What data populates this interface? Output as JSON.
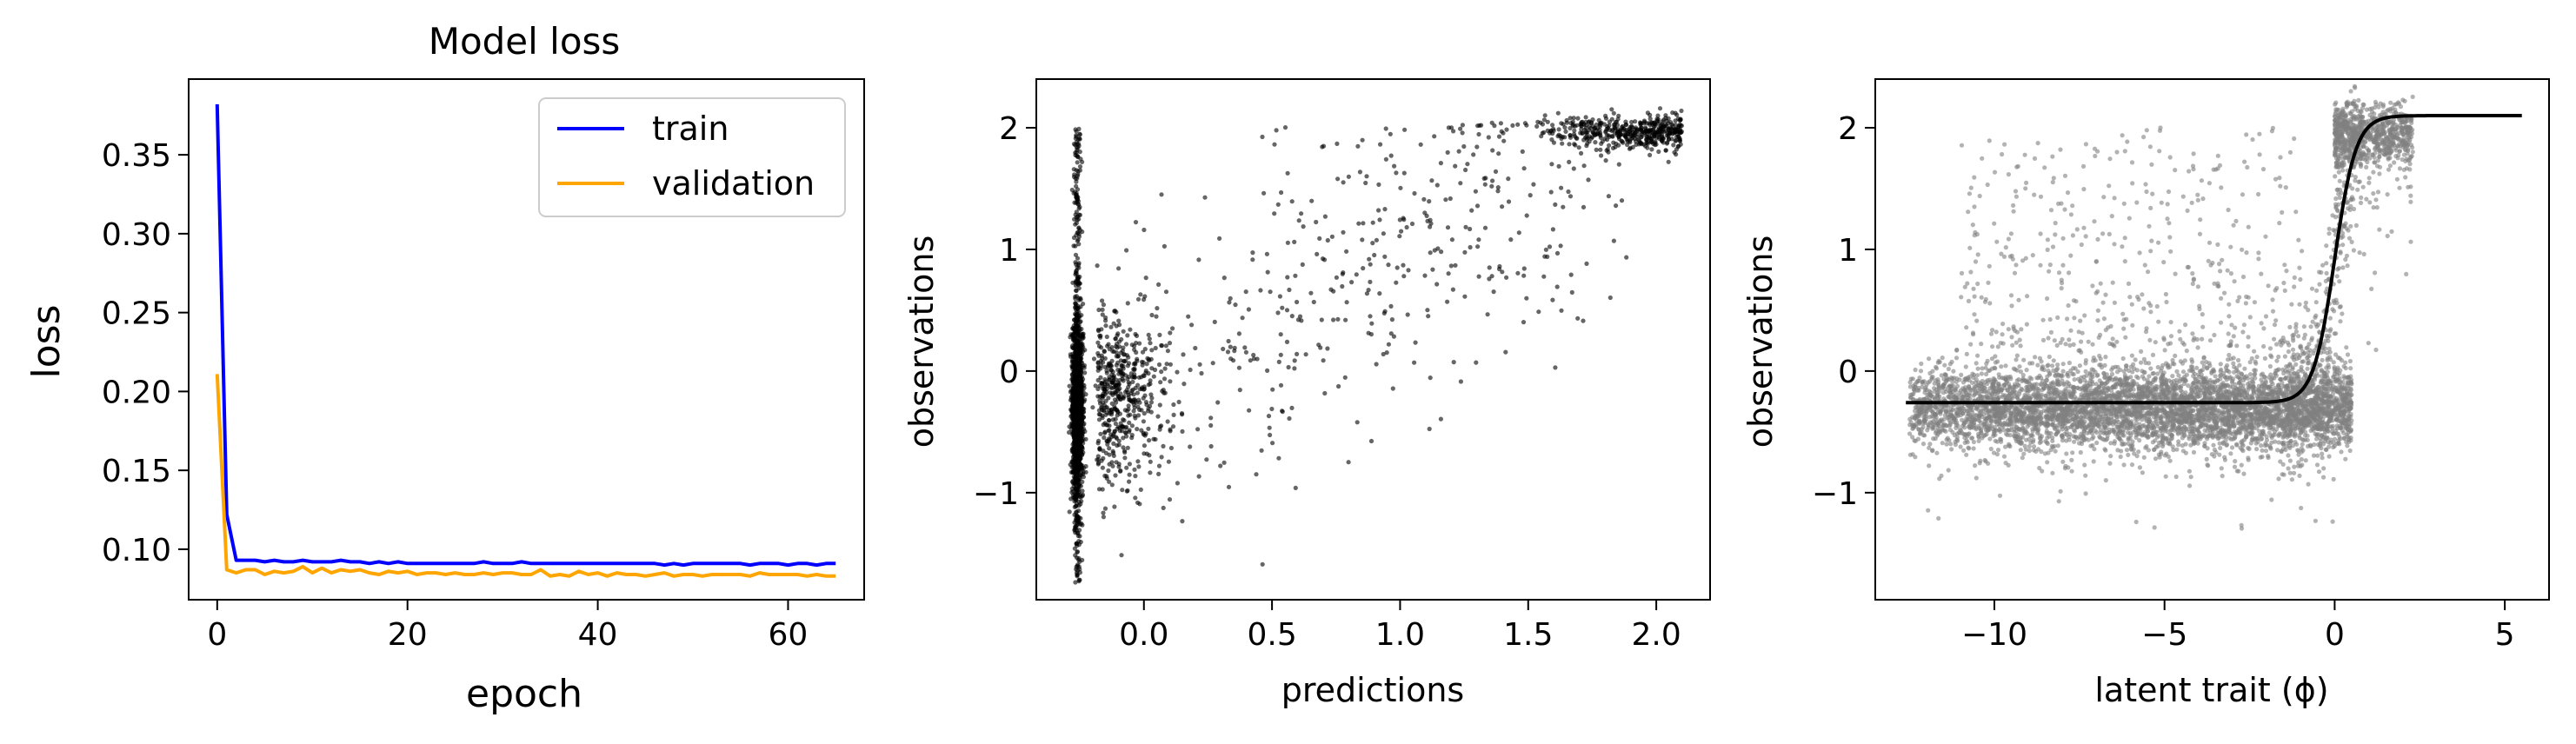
{
  "chart_data": [
    {
      "type": "line",
      "title": "Model loss",
      "xlabel": "epoch",
      "ylabel": "loss",
      "xlim": [
        -3,
        68
      ],
      "ylim": [
        0.068,
        0.398
      ],
      "xticks": [
        "0",
        "20",
        "40",
        "60"
      ],
      "xtick_values": [
        0,
        20,
        40,
        60
      ],
      "yticks": [
        "0.10",
        "0.15",
        "0.20",
        "0.25",
        "0.30",
        "0.35"
      ],
      "ytick_values": [
        0.1,
        0.15,
        0.2,
        0.25,
        0.3,
        0.35
      ],
      "legend_position": "upper right",
      "series": [
        {
          "name": "train",
          "color": "#0000ff",
          "x": [
            0,
            1,
            2,
            3,
            4,
            5,
            6,
            7,
            8,
            9,
            10,
            11,
            12,
            13,
            14,
            15,
            16,
            17,
            18,
            19,
            20,
            21,
            22,
            23,
            24,
            25,
            26,
            27,
            28,
            29,
            30,
            31,
            32,
            33,
            34,
            35,
            36,
            37,
            38,
            39,
            40,
            41,
            42,
            43,
            44,
            45,
            46,
            47,
            48,
            49,
            50,
            51,
            52,
            53,
            54,
            55,
            56,
            57,
            58,
            59,
            60,
            61,
            62,
            63,
            64,
            65
          ],
          "y": [
            0.382,
            0.122,
            0.093,
            0.093,
            0.093,
            0.092,
            0.093,
            0.092,
            0.092,
            0.093,
            0.092,
            0.092,
            0.092,
            0.093,
            0.092,
            0.092,
            0.091,
            0.092,
            0.091,
            0.092,
            0.091,
            0.091,
            0.091,
            0.091,
            0.091,
            0.091,
            0.091,
            0.091,
            0.092,
            0.091,
            0.091,
            0.091,
            0.092,
            0.091,
            0.091,
            0.091,
            0.091,
            0.091,
            0.091,
            0.091,
            0.091,
            0.091,
            0.091,
            0.091,
            0.091,
            0.091,
            0.091,
            0.09,
            0.091,
            0.09,
            0.091,
            0.091,
            0.091,
            0.091,
            0.091,
            0.091,
            0.09,
            0.091,
            0.091,
            0.091,
            0.09,
            0.091,
            0.091,
            0.09,
            0.091,
            0.091
          ]
        },
        {
          "name": "validation",
          "color": "#ffa500",
          "x": [
            0,
            1,
            2,
            3,
            4,
            5,
            6,
            7,
            8,
            9,
            10,
            11,
            12,
            13,
            14,
            15,
            16,
            17,
            18,
            19,
            20,
            21,
            22,
            23,
            24,
            25,
            26,
            27,
            28,
            29,
            30,
            31,
            32,
            33,
            34,
            35,
            36,
            37,
            38,
            39,
            40,
            41,
            42,
            43,
            44,
            45,
            46,
            47,
            48,
            49,
            50,
            51,
            52,
            53,
            54,
            55,
            56,
            57,
            58,
            59,
            60,
            61,
            62,
            63,
            64,
            65
          ],
          "y": [
            0.211,
            0.087,
            0.085,
            0.087,
            0.087,
            0.084,
            0.086,
            0.085,
            0.086,
            0.089,
            0.085,
            0.088,
            0.085,
            0.087,
            0.086,
            0.087,
            0.085,
            0.084,
            0.086,
            0.085,
            0.086,
            0.084,
            0.085,
            0.085,
            0.084,
            0.085,
            0.084,
            0.084,
            0.085,
            0.084,
            0.085,
            0.085,
            0.084,
            0.084,
            0.087,
            0.083,
            0.084,
            0.083,
            0.086,
            0.084,
            0.085,
            0.083,
            0.085,
            0.084,
            0.084,
            0.083,
            0.084,
            0.085,
            0.083,
            0.084,
            0.084,
            0.083,
            0.084,
            0.084,
            0.084,
            0.084,
            0.083,
            0.085,
            0.084,
            0.084,
            0.084,
            0.084,
            0.083,
            0.084,
            0.083,
            0.083
          ]
        }
      ]
    },
    {
      "type": "scatter",
      "title": "",
      "xlabel": "predictions",
      "ylabel": "observations",
      "xlim": [
        -0.42,
        2.21
      ],
      "ylim": [
        -1.88,
        2.4
      ],
      "xticks": [
        "0.0",
        "0.5",
        "1.0",
        "1.5",
        "2.0"
      ],
      "xtick_values": [
        0.0,
        0.5,
        1.0,
        1.5,
        2.0
      ],
      "yticks": [
        "−1",
        "0",
        "1",
        "2"
      ],
      "ytick_values": [
        -1,
        0,
        1,
        2
      ],
      "point_color": "#000000",
      "point_alpha": 0.6,
      "point_count": 3200,
      "seed": 7,
      "clusters": [
        {
          "kind": "vertical-band",
          "x": -0.26,
          "x_spread": 0.018,
          "y_center": -0.3,
          "y_spread": 0.35,
          "n": 1500
        },
        {
          "kind": "vertical-spikes",
          "x": -0.26,
          "x_spread": 0.015,
          "y_range": [
            -1.75,
            2.0
          ],
          "n": 320
        },
        {
          "kind": "blob",
          "x_center": -0.1,
          "x_spread": 0.12,
          "y_center": -0.2,
          "y_spread": 0.35,
          "n": 450
        },
        {
          "kind": "sparse-diagonal",
          "x_range": [
            -0.2,
            1.9
          ],
          "y_from": -0.4,
          "y_to": 2.0,
          "y_spread": 0.65,
          "n": 520
        },
        {
          "kind": "top-cluster",
          "x_range": [
            1.5,
            2.1
          ],
          "y_center": 1.96,
          "y_spread": 0.07,
          "n": 410
        }
      ]
    },
    {
      "type": "scatter",
      "title": "",
      "xlabel": "latent trait (ϕ)",
      "ylabel": "observations",
      "xlim": [
        -13.5,
        6.3
      ],
      "ylim": [
        -1.88,
        2.4
      ],
      "xticks": [
        "−10",
        "−5",
        "0",
        "5"
      ],
      "xtick_values": [
        -10,
        -5,
        0,
        5
      ],
      "yticks": [
        "−1",
        "0",
        "1",
        "2"
      ],
      "ytick_values": [
        -1,
        0,
        1,
        2
      ],
      "point_color": "#808080",
      "point_alpha": 0.6,
      "point_count": 7000,
      "seed": 11,
      "clusters": [
        {
          "kind": "low-band",
          "x_range": [
            -12.5,
            0.5
          ],
          "y_center": -0.3,
          "y_spread": 0.17,
          "n": 5400
        },
        {
          "kind": "sparse-mid",
          "x_range": [
            -11.0,
            -1.0
          ],
          "y_range": [
            0.2,
            2.0
          ],
          "n": 380
        },
        {
          "kind": "rise",
          "x_range": [
            -1.5,
            0.6
          ],
          "n": 350
        },
        {
          "kind": "upper-cluster",
          "x_range": [
            0.0,
            2.3
          ],
          "y_center": 1.95,
          "y_spread": 0.12,
          "n": 870
        }
      ],
      "fit_curve": {
        "color": "#000000",
        "lower": -0.26,
        "upper": 2.1,
        "midpoint": 0.0,
        "steepness": 1.6,
        "x_range": [
          -12.6,
          5.5
        ]
      }
    }
  ]
}
